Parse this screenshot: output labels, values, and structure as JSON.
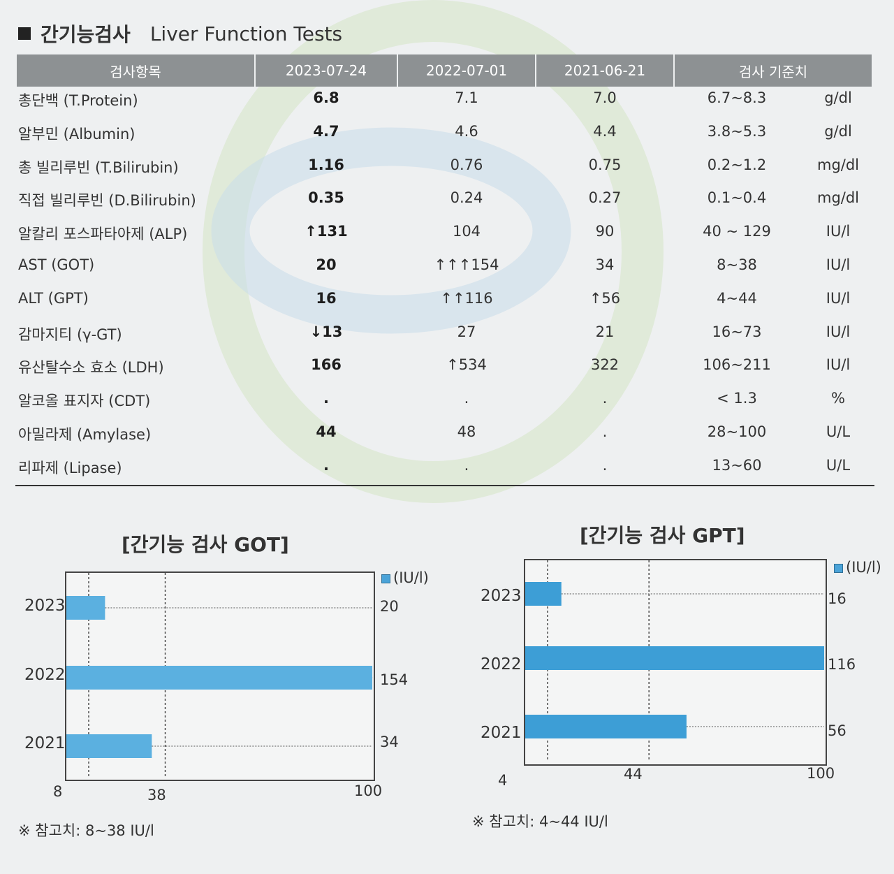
{
  "title": {
    "ko": "간기능검사",
    "en": "Liver Function Tests"
  },
  "table": {
    "headers": [
      "검사항목",
      "2023-07-24",
      "2022-07-01",
      "2021-06-21",
      "검사 기준치"
    ],
    "rows": [
      {
        "label": "총단백 (T.Protein)",
        "v2023": "6.8",
        "v2022": "7.1",
        "v2021": "7.0",
        "range": "6.7~8.3",
        "unit": "g/dl"
      },
      {
        "label": "알부민 (Albumin)",
        "v2023": "4.7",
        "v2022": "4.6",
        "v2021": "4.4",
        "range": "3.8~5.3",
        "unit": "g/dl"
      },
      {
        "label": "총 빌리루빈 (T.Bilirubin)",
        "v2023": "1.16",
        "v2022": "0.76",
        "v2021": "0.75",
        "range": "0.2~1.2",
        "unit": "mg/dl"
      },
      {
        "label": "직접 빌리루빈 (D.Bilirubin)",
        "v2023": "0.35",
        "v2022": "0.24",
        "v2021": "0.27",
        "range": "0.1~0.4",
        "unit": "mg/dl"
      },
      {
        "label": "알칼리 포스파타아제 (ALP)",
        "v2023": "↑131",
        "v2022": "104",
        "v2021": "90",
        "range": "40 ~ 129",
        "unit": "IU/l"
      },
      {
        "label": "AST (GOT)",
        "v2023": "20",
        "v2022": "↑↑↑154",
        "v2021": "34",
        "range": "8~38",
        "unit": "IU/l"
      },
      {
        "label": "ALT (GPT)",
        "v2023": "16",
        "v2022": "↑↑116",
        "v2021": "↑56",
        "range": "4~44",
        "unit": "IU/l"
      },
      {
        "label": "감마지티 (γ-GT)",
        "v2023": "↓13",
        "v2022": "27",
        "v2021": "21",
        "range": "16~73",
        "unit": "IU/l"
      },
      {
        "label": "유산탈수소 효소 (LDH)",
        "v2023": "166",
        "v2022": "↑534",
        "v2021": "322",
        "range": "106~211",
        "unit": "IU/l"
      },
      {
        "label": "알코올 표지자 (CDT)",
        "v2023": ".",
        "v2022": ".",
        "v2021": ".",
        "range": "< 1.3",
        "unit": "%"
      },
      {
        "label": "아밀라제 (Amylase)",
        "v2023": "44",
        "v2022": "48",
        "v2021": ".",
        "range": "28~100",
        "unit": "U/L"
      },
      {
        "label": "리파제 (Lipase)",
        "v2023": ".",
        "v2022": ".",
        "v2021": ".",
        "range": "13~60",
        "unit": "U/L"
      }
    ]
  },
  "chart_data": [
    {
      "type": "bar",
      "title": "[간기능 검사 GOT]",
      "unit_legend": "(IU/l)",
      "categories": [
        "2023",
        "2022",
        "2021"
      ],
      "values": [
        20,
        154,
        34
      ],
      "value_labels": [
        "20",
        "154",
        "34"
      ],
      "x_ticks": [
        "8",
        "38",
        "100"
      ],
      "reference_lines": [
        8,
        38
      ],
      "xlim": [
        8,
        100
      ],
      "bar_color": "#5bb0e0",
      "note": "※ 참고치: 8~38 IU/l"
    },
    {
      "type": "bar",
      "title": "[간기능 검사  GPT]",
      "unit_legend": "(IU/l)",
      "categories": [
        "2023",
        "2022",
        "2021"
      ],
      "values": [
        16,
        116,
        56
      ],
      "value_labels": [
        "16",
        "116",
        "56"
      ],
      "x_ticks": [
        "4",
        "44",
        "100"
      ],
      "reference_lines": [
        4,
        44
      ],
      "xlim": [
        4,
        100
      ],
      "bar_color": "#3d9ed6",
      "note": "※ 참고치: 4~44 IU/l"
    }
  ]
}
